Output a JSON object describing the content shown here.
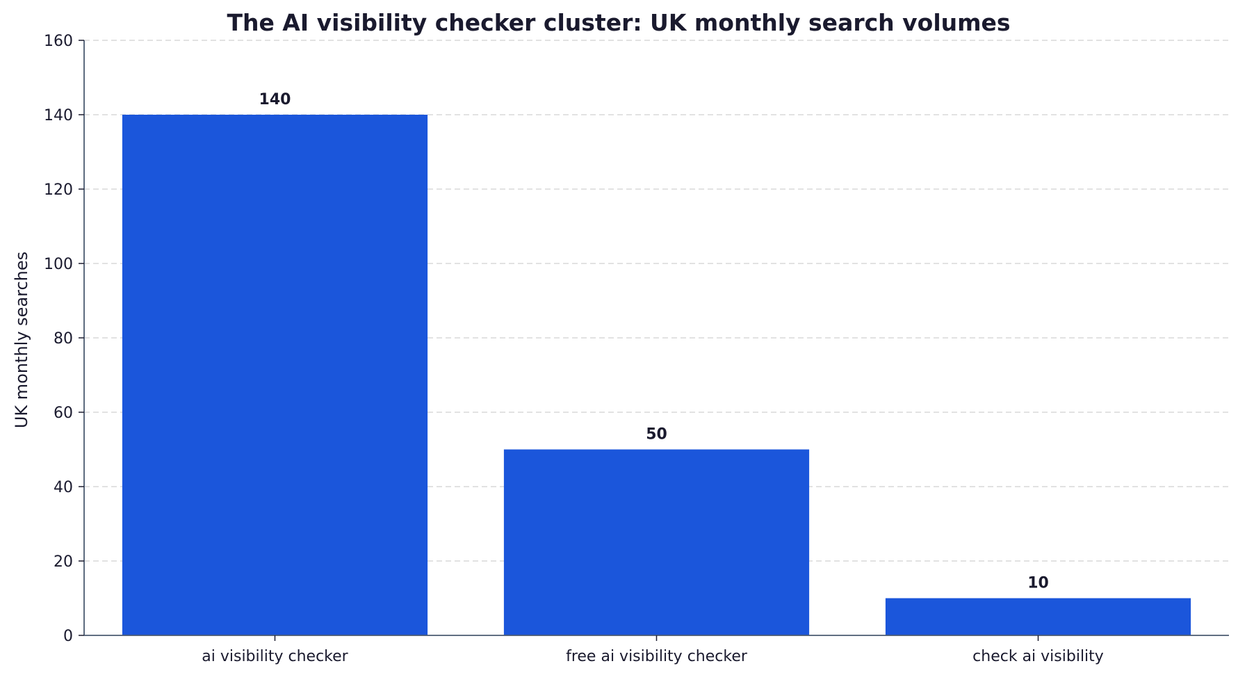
{
  "chart_data": {
    "type": "bar",
    "title": "The AI visibility checker cluster: UK monthly search volumes",
    "xlabel": "",
    "ylabel": "UK monthly searches",
    "categories": [
      "ai visibility checker",
      "free ai visibility checker",
      "check ai visibility"
    ],
    "values": [
      140,
      50,
      10
    ],
    "data_labels": [
      "140",
      "50",
      "10"
    ],
    "ylim": [
      0,
      160
    ],
    "yticks": [
      0,
      20,
      40,
      60,
      80,
      100,
      120,
      140,
      160
    ],
    "grid": "horizontal dashed",
    "legend": "none",
    "colors": {
      "bar": "#1b56db",
      "text": "#1a1a2e",
      "axis": "#4a5a70",
      "grid": "#d9d9d9"
    }
  }
}
